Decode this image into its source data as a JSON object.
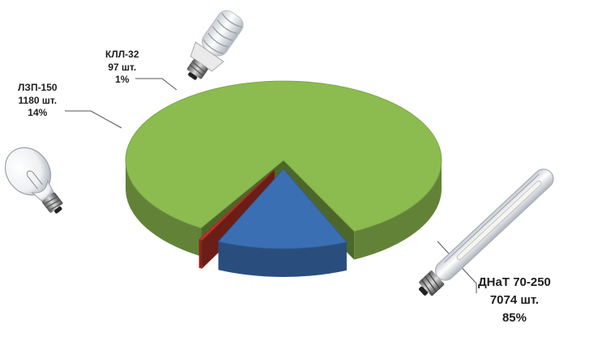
{
  "chart_data": {
    "type": "pie",
    "three_d": true,
    "title": "",
    "unit": "шт.",
    "categories": [
      "ДНаТ 70-250",
      "ЛЗП-150",
      "КЛЛ-32"
    ],
    "values": [
      7074,
      1180,
      97
    ],
    "percent_labels": [
      "85%",
      "14%",
      "1%"
    ],
    "value_labels": [
      "7074 шт.",
      "1180 шт.",
      "97 шт."
    ],
    "colors": [
      "#8cbb4f",
      "#3a6fb4",
      "#c23429"
    ],
    "legend": "none"
  },
  "lamp_icons": [
    "sodium-lamp-icon",
    "incandescent-bulb-icon",
    "cfl-bulb-icon"
  ]
}
